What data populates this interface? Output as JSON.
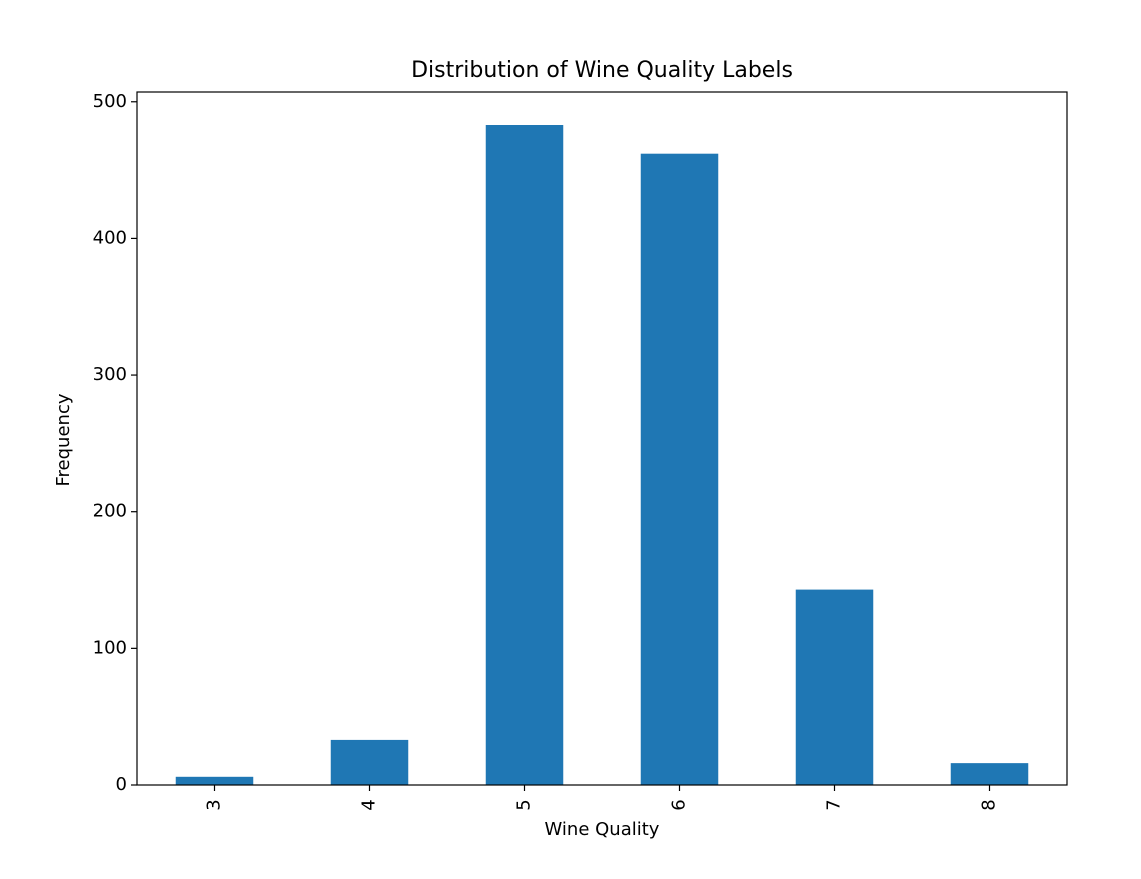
{
  "chart_data": {
    "type": "bar",
    "title": "Distribution of Wine Quality Labels",
    "x_label": "Wine Quality",
    "y_label": "Frequency",
    "categories": [
      "3",
      "4",
      "5",
      "6",
      "7",
      "8"
    ],
    "values": [
      6,
      33,
      483,
      462,
      143,
      16
    ],
    "color": "#1f77b4",
    "ylim": [
      0,
      507.15
    ],
    "yticks": [
      0,
      100,
      200,
      300,
      400,
      500
    ],
    "grid": false
  }
}
